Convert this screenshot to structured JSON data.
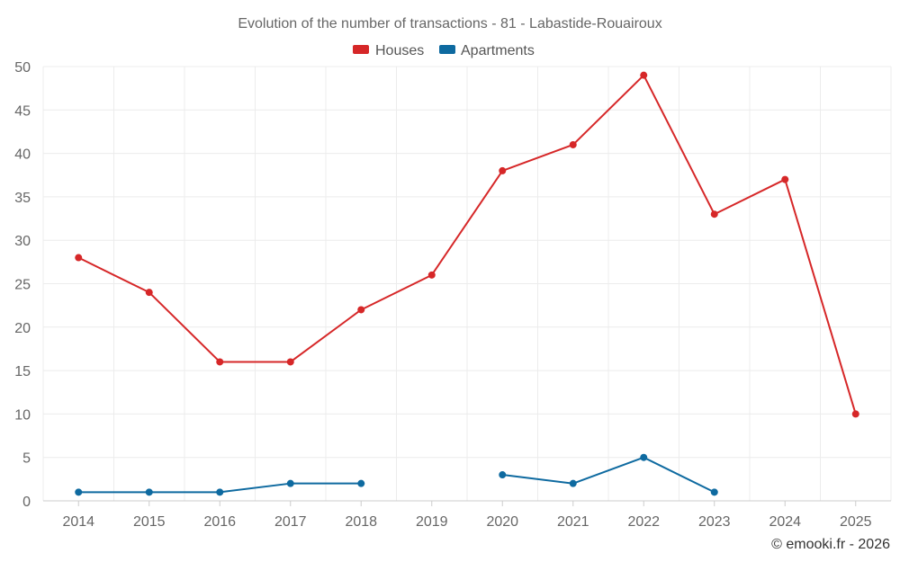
{
  "chart_data": {
    "type": "line",
    "title": "Evolution of the number of transactions - 81 - Labastide-Rouairoux",
    "categories": [
      "2014",
      "2015",
      "2016",
      "2017",
      "2018",
      "2019",
      "2020",
      "2021",
      "2022",
      "2023",
      "2024",
      "2025"
    ],
    "series": [
      {
        "name": "Houses",
        "color": "#d62728",
        "values": [
          28,
          24,
          16,
          16,
          22,
          26,
          38,
          41,
          49,
          33,
          37,
          10
        ]
      },
      {
        "name": "Apartments",
        "color": "#0e6aa0",
        "values": [
          1,
          1,
          1,
          2,
          2,
          null,
          3,
          2,
          5,
          1,
          null,
          null
        ]
      }
    ],
    "ylim": [
      0,
      50
    ],
    "yticks": [
      0,
      5,
      10,
      15,
      20,
      25,
      30,
      35,
      40,
      45,
      50
    ],
    "xlabel": "",
    "ylabel": "",
    "grid": true,
    "legend": "top-center"
  },
  "credit": "© emooki.fr - 2026"
}
